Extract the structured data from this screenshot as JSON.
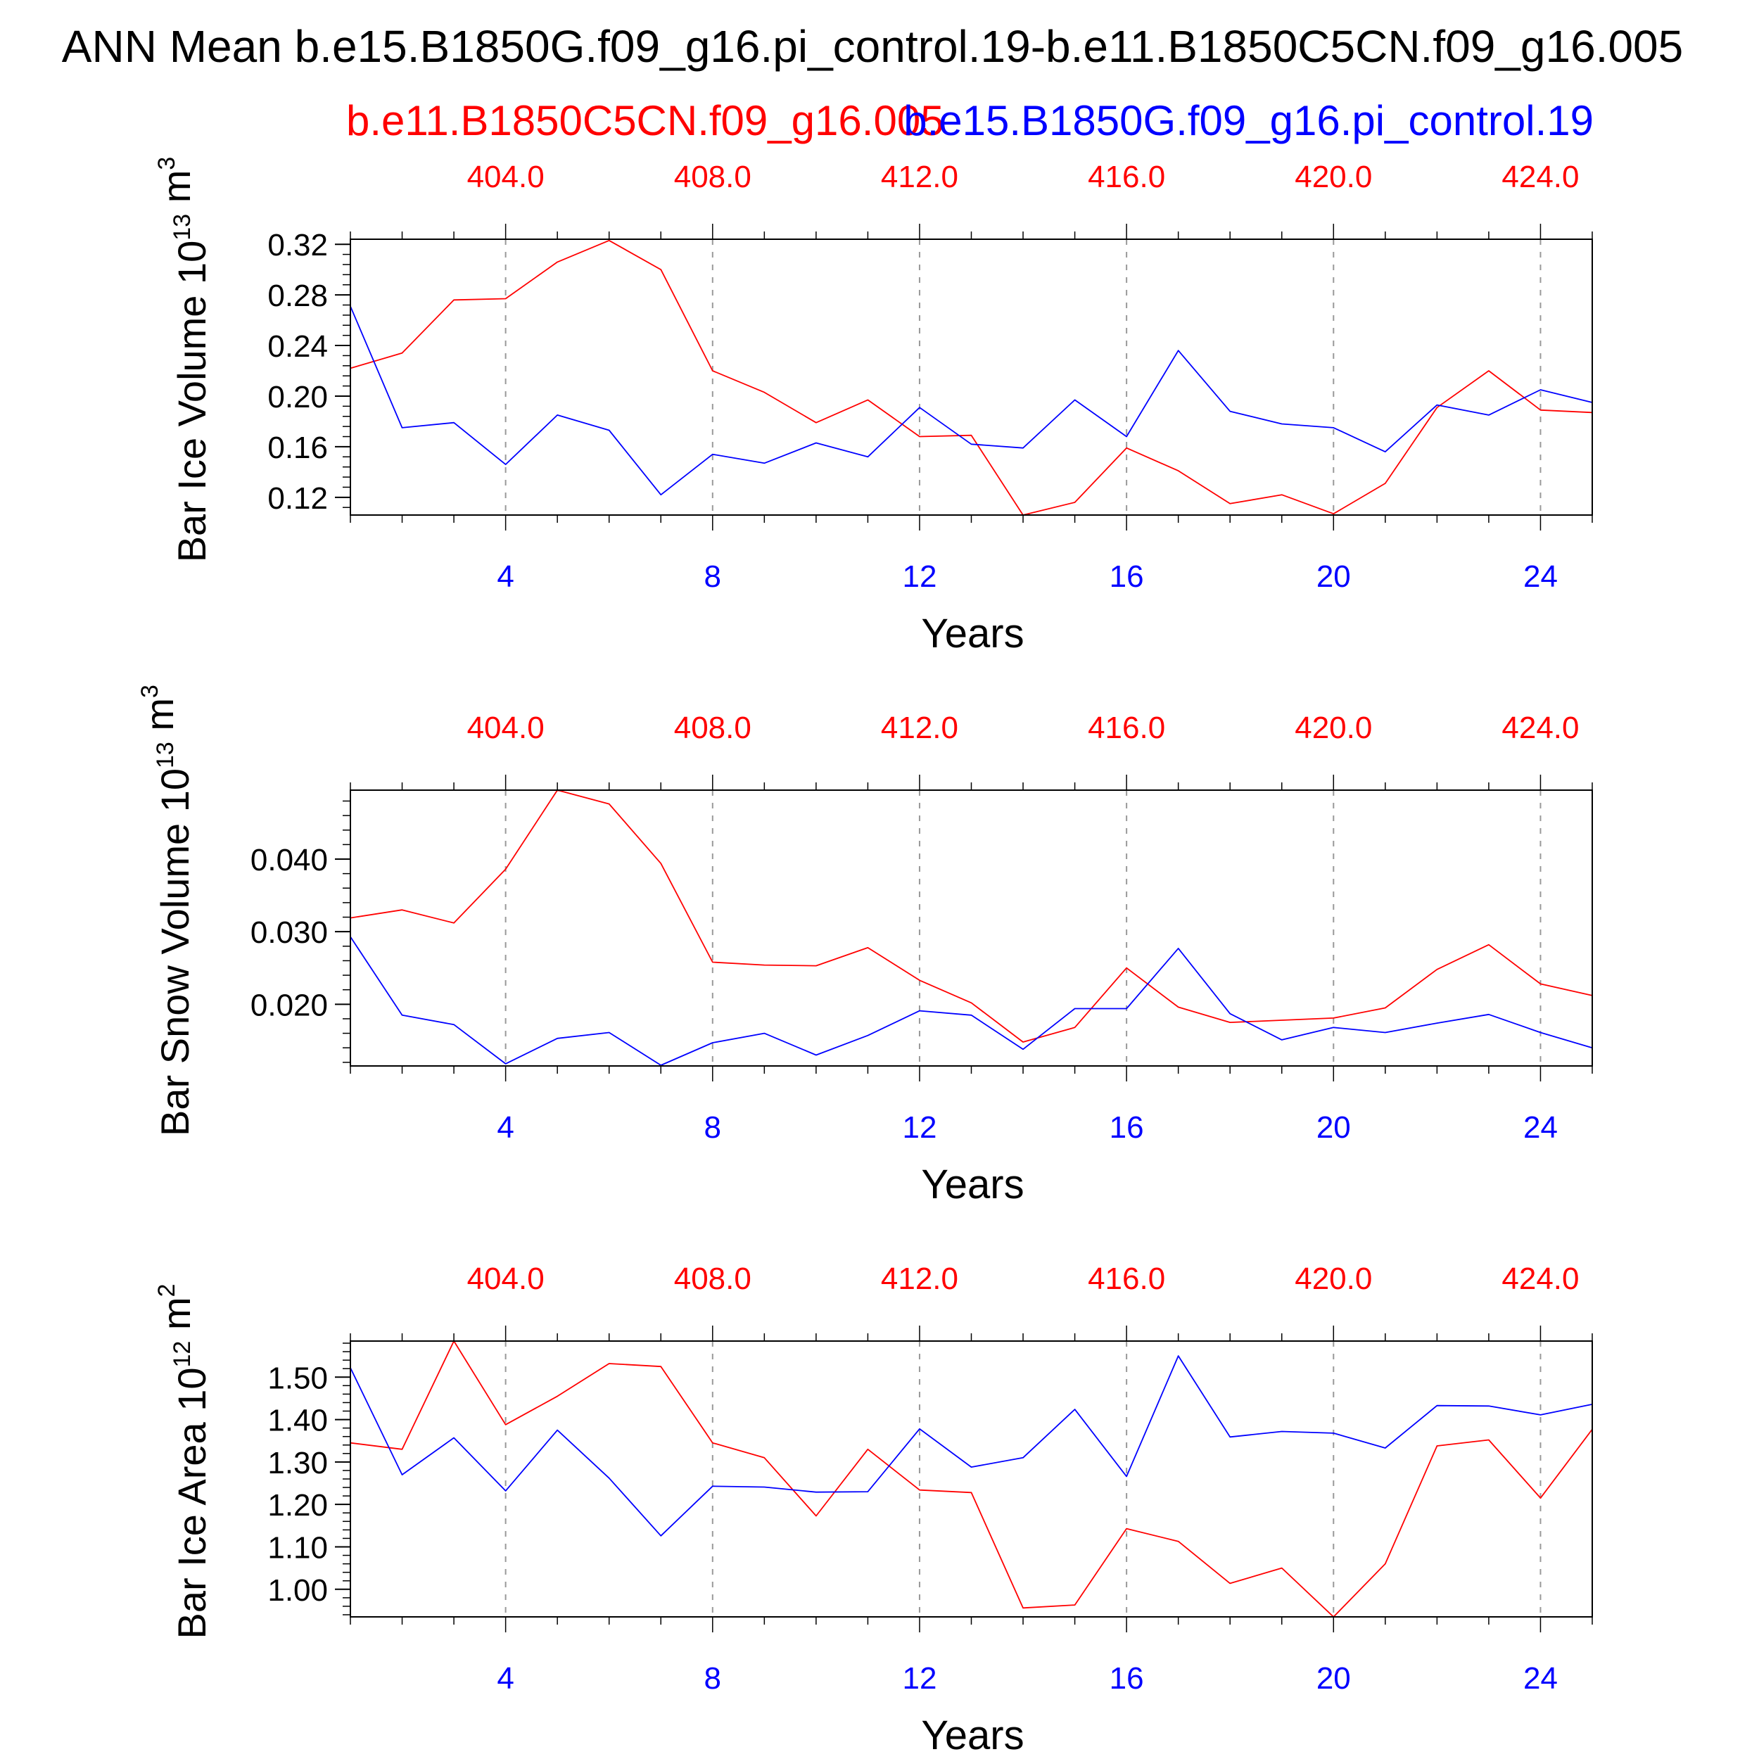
{
  "title": "ANN Mean b.e15.B1850G.f09_g16.pi_control.19-b.e11.B1850C5CN.f09_g16.005",
  "legend": {
    "series1_name": "b.e11.B1850C5CN.f09_g16.005",
    "series2_name": "b.e15.B1850G.f09_g16.pi_control.19"
  },
  "colors": {
    "series1": "#ff0000",
    "series2": "#0000ff",
    "axis": "#000000",
    "grid": "#999999"
  },
  "chart_data": [
    {
      "type": "line",
      "ylabel_main": "Bar Ice Volume 10",
      "ylabel_exp": "13",
      "ylabel_unit": "m",
      "ylabel_unit_exp": "3",
      "xlabel": "Years",
      "x": [
        1,
        2,
        3,
        4,
        5,
        6,
        7,
        8,
        9,
        10,
        11,
        12,
        13,
        14,
        15,
        16,
        17,
        18,
        19,
        20,
        21,
        22,
        23,
        24,
        25
      ],
      "xlim": [
        1,
        25
      ],
      "ylim": [
        0.106,
        0.324
      ],
      "yticks": [
        0.12,
        0.16,
        0.2,
        0.24,
        0.28,
        0.32
      ],
      "ytick_labels": [
        "0.12",
        "0.16",
        "0.20",
        "0.24",
        "0.28",
        "0.32"
      ],
      "bottom_ticks": [
        4,
        8,
        12,
        16,
        20,
        24
      ],
      "bottom_tick_labels": [
        "4",
        "8",
        "12",
        "16",
        "20",
        "24"
      ],
      "top_ticks": [
        4,
        8,
        12,
        16,
        20,
        24
      ],
      "top_tick_labels": [
        "404.0",
        "408.0",
        "412.0",
        "416.0",
        "420.0",
        "424.0"
      ],
      "grid": "vertical dashed at major x ticks",
      "series": [
        {
          "name": "b.e11.B1850C5CN.f09_g16.005",
          "values": [
            0.222,
            0.234,
            0.276,
            0.277,
            0.306,
            0.323,
            0.3,
            0.22,
            0.203,
            0.179,
            0.197,
            0.168,
            0.169,
            0.106,
            0.116,
            0.159,
            0.141,
            0.115,
            0.122,
            0.107,
            0.131,
            0.191,
            0.22,
            0.189,
            0.187
          ]
        },
        {
          "name": "b.e15.B1850G.f09_g16.pi_control.19",
          "values": [
            0.271,
            0.175,
            0.179,
            0.146,
            0.185,
            0.173,
            0.122,
            0.154,
            0.147,
            0.163,
            0.152,
            0.191,
            0.162,
            0.159,
            0.197,
            0.168,
            0.236,
            0.188,
            0.178,
            0.175,
            0.156,
            0.193,
            0.185,
            0.205,
            0.195
          ]
        }
      ]
    },
    {
      "type": "line",
      "ylabel_main": "Bar Snow Volume 10",
      "ylabel_exp": "13",
      "ylabel_unit": "m",
      "ylabel_unit_exp": "3",
      "xlabel": "Years",
      "x": [
        1,
        2,
        3,
        4,
        5,
        6,
        7,
        8,
        9,
        10,
        11,
        12,
        13,
        14,
        15,
        16,
        17,
        18,
        19,
        20,
        21,
        22,
        23,
        24,
        25
      ],
      "xlim": [
        1,
        25
      ],
      "ylim": [
        0.0115,
        0.0495
      ],
      "yticks": [
        0.02,
        0.03,
        0.04
      ],
      "ytick_labels": [
        "0.020",
        "0.030",
        "0.040"
      ],
      "bottom_ticks": [
        4,
        8,
        12,
        16,
        20,
        24
      ],
      "bottom_tick_labels": [
        "4",
        "8",
        "12",
        "16",
        "20",
        "24"
      ],
      "top_ticks": [
        4,
        8,
        12,
        16,
        20,
        24
      ],
      "top_tick_labels": [
        "404.0",
        "408.0",
        "412.0",
        "416.0",
        "420.0",
        "424.0"
      ],
      "grid": "vertical dashed at major x ticks",
      "series": [
        {
          "name": "b.e11.B1850C5CN.f09_g16.005",
          "values": [
            0.0319,
            0.033,
            0.0312,
            0.0386,
            0.0495,
            0.0476,
            0.0394,
            0.0258,
            0.0254,
            0.0253,
            0.0278,
            0.0233,
            0.0202,
            0.0148,
            0.0168,
            0.025,
            0.0196,
            0.0175,
            0.0178,
            0.0181,
            0.0195,
            0.0248,
            0.0282,
            0.0228,
            0.0212
          ]
        },
        {
          "name": "b.e15.B1850G.f09_g16.pi_control.19",
          "values": [
            0.0293,
            0.0185,
            0.0172,
            0.0118,
            0.0153,
            0.0161,
            0.0116,
            0.0147,
            0.016,
            0.013,
            0.0157,
            0.0191,
            0.0185,
            0.0138,
            0.0194,
            0.0194,
            0.0277,
            0.0187,
            0.0151,
            0.0168,
            0.0161,
            0.0174,
            0.0186,
            0.0161,
            0.014
          ]
        }
      ]
    },
    {
      "type": "line",
      "ylabel_main": "Bar Ice Area 10",
      "ylabel_exp": "12",
      "ylabel_unit": "m",
      "ylabel_unit_exp": "2",
      "xlabel": "Years",
      "x": [
        1,
        2,
        3,
        4,
        5,
        6,
        7,
        8,
        9,
        10,
        11,
        12,
        13,
        14,
        15,
        16,
        17,
        18,
        19,
        20,
        21,
        22,
        23,
        24,
        25
      ],
      "xlim": [
        1,
        25
      ],
      "ylim": [
        0.935,
        1.585
      ],
      "yticks": [
        1.0,
        1.1,
        1.2,
        1.3,
        1.4,
        1.5
      ],
      "ytick_labels": [
        "1.00",
        "1.10",
        "1.20",
        "1.30",
        "1.40",
        "1.50"
      ],
      "bottom_ticks": [
        4,
        8,
        12,
        16,
        20,
        24
      ],
      "bottom_tick_labels": [
        "4",
        "8",
        "12",
        "16",
        "20",
        "24"
      ],
      "top_ticks": [
        4,
        8,
        12,
        16,
        20,
        24
      ],
      "top_tick_labels": [
        "404.0",
        "408.0",
        "412.0",
        "416.0",
        "420.0",
        "424.0"
      ],
      "grid": "vertical dashed at major x ticks",
      "series": [
        {
          "name": "b.e11.B1850C5CN.f09_g16.005",
          "values": [
            1.345,
            1.33,
            1.585,
            1.388,
            1.455,
            1.532,
            1.525,
            1.345,
            1.31,
            1.173,
            1.33,
            1.234,
            1.228,
            0.956,
            0.963,
            1.143,
            1.113,
            1.014,
            1.05,
            0.935,
            1.06,
            1.338,
            1.352,
            1.215,
            1.377
          ]
        },
        {
          "name": "b.e15.B1850G.f09_g16.pi_control.19",
          "values": [
            1.522,
            1.27,
            1.357,
            1.232,
            1.375,
            1.262,
            1.126,
            1.243,
            1.241,
            1.229,
            1.23,
            1.378,
            1.288,
            1.31,
            1.424,
            1.266,
            1.55,
            1.359,
            1.372,
            1.368,
            1.333,
            1.433,
            1.432,
            1.411,
            1.436
          ]
        }
      ]
    }
  ]
}
